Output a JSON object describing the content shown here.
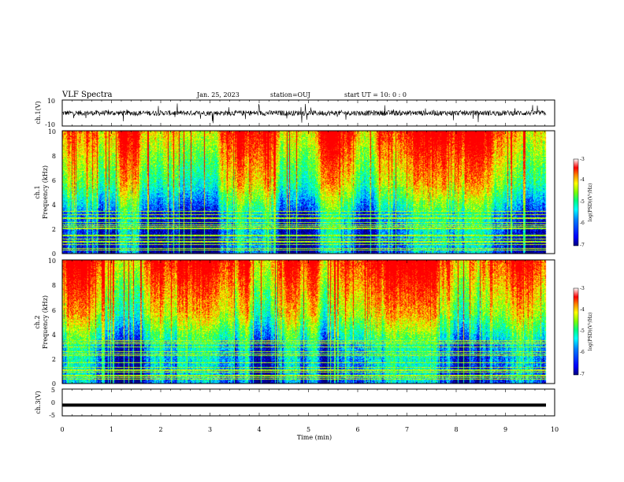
{
  "header": {
    "title": "VLF Spectra",
    "date": "Jan. 25, 2023",
    "station": "station=OUJ",
    "start": "start  UT =   10: 0  : 0"
  },
  "chart_data": [
    {
      "type": "line",
      "id": "ch1-waveform",
      "ylabel": "ch.1(V)",
      "ylim": [
        -10,
        10
      ],
      "yticks": [
        "10",
        "-10"
      ],
      "xlim": [
        0,
        10
      ],
      "note_values": "dense noisy waveform centred near 0 V, spanning roughly -3 to 3 V with spikes"
    },
    {
      "type": "heatmap",
      "id": "ch1-spectrogram",
      "ylabel": [
        "ch.1",
        "Frequency  (kHz)"
      ],
      "ylim": [
        0,
        10
      ],
      "yticks": [
        "0",
        "2",
        "4",
        "6",
        "8",
        "10"
      ],
      "xlim": [
        0,
        10
      ],
      "colorbar": {
        "label": "log(PSD)(V²/Hz)",
        "range": [
          -7,
          -3
        ],
        "ticks": [
          "-3",
          "-4",
          "-5",
          "-6",
          "-7"
        ]
      }
    },
    {
      "type": "heatmap",
      "id": "ch2-spectrogram",
      "ylabel": [
        "ch.2",
        "Frequency  (kHz)"
      ],
      "ylim": [
        0,
        10
      ],
      "yticks": [
        "0",
        "2",
        "4",
        "6",
        "8",
        "10"
      ],
      "xlim": [
        0,
        10
      ],
      "colorbar": {
        "label": "log(PSD)(V²/Hz)",
        "range": [
          -7,
          -3
        ],
        "ticks": [
          "-3",
          "-4",
          "-5",
          "-6",
          "-7"
        ]
      }
    },
    {
      "type": "line",
      "id": "ch3-waveform",
      "ylabel": "ch.3(V)",
      "ylim": [
        -5,
        5
      ],
      "yticks": [
        "5",
        "0",
        "-5"
      ],
      "xlim": [
        0,
        10
      ],
      "values_note": "flat thick trace at about -1 V",
      "level": -1
    }
  ],
  "xaxis": {
    "label": "Time  (min)",
    "ticks": [
      "0",
      "1",
      "2",
      "3",
      "4",
      "5",
      "6",
      "7",
      "8",
      "9",
      "10"
    ]
  },
  "colors": {
    "colormap": [
      "#000080",
      "#0000ff",
      "#0080ff",
      "#00ffff",
      "#00ff80",
      "#80ff00",
      "#ffff00",
      "#ff8000",
      "#ff0000"
    ]
  }
}
